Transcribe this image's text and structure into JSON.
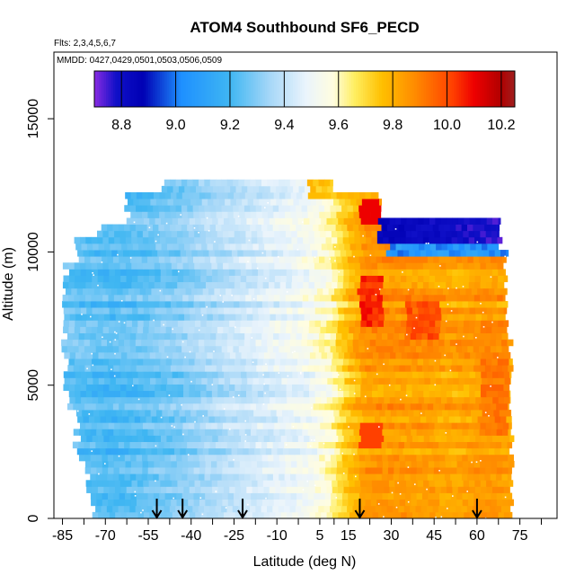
{
  "chart_data": {
    "type": "heatmap",
    "title": "ATOM4 Southbound SF6_PECD",
    "flights_note": "Flts: 2,3,4,5,6,7",
    "dates_note": "MMDD: 0427,0429,0501,0503,0506,0509",
    "xlabel": "Latitude (deg N)",
    "ylabel": "Altitude (m)",
    "xlim": [
      -88,
      88
    ],
    "ylim": [
      0,
      17500
    ],
    "x_tick_labels": [
      "-85",
      "-70",
      "-55",
      "-40",
      "-25",
      "-10",
      "5",
      "15",
      "30",
      "45",
      "60",
      "75"
    ],
    "x_tick_values": [
      -85,
      -70,
      -55,
      -40,
      -25,
      -10,
      5,
      15,
      30,
      45,
      60,
      75
    ],
    "x_minor_ticks": [
      -77.5,
      -62.5,
      -47.5,
      -32.5,
      -17.5,
      -2.5,
      10,
      22.5,
      37.5,
      52.5,
      67.5,
      82.5
    ],
    "y_tick_labels": [
      "0",
      "5000",
      "10000",
      "15000"
    ],
    "y_tick_values": [
      0,
      5000,
      10000,
      15000
    ],
    "colorbar": {
      "range": [
        8.7,
        10.25
      ],
      "tick_labels": [
        "8.8",
        "9.0",
        "9.2",
        "9.4",
        "9.6",
        "9.8",
        "10.0",
        "10.2"
      ],
      "tick_values": [
        8.8,
        9.0,
        9.2,
        9.4,
        9.6,
        9.8,
        10.0,
        10.2
      ],
      "color_stops": [
        [
          8.7,
          "#8a2be2"
        ],
        [
          8.78,
          "#1010c8"
        ],
        [
          8.88,
          "#0000b4"
        ],
        [
          9.02,
          "#1e90ff"
        ],
        [
          9.2,
          "#3fb6f2"
        ],
        [
          9.35,
          "#a8d8f8"
        ],
        [
          9.48,
          "#eaf4fc"
        ],
        [
          9.58,
          "#fffde0"
        ],
        [
          9.66,
          "#ffee60"
        ],
        [
          9.76,
          "#ffc000"
        ],
        [
          9.88,
          "#ff8c00"
        ],
        [
          10.02,
          "#ff4000"
        ],
        [
          10.1,
          "#ee0000"
        ],
        [
          10.2,
          "#b00000"
        ],
        [
          10.25,
          "#a02020"
        ]
      ]
    },
    "arrows_latitude": [
      -52,
      -43,
      -22,
      19,
      60
    ],
    "profile_values": [
      {
        "lat": -82,
        "value": 9.25
      },
      {
        "lat": -70,
        "value": 9.22
      },
      {
        "lat": -60,
        "value": 9.24
      },
      {
        "lat": -45,
        "value": 9.3
      },
      {
        "lat": -30,
        "value": 9.38
      },
      {
        "lat": -15,
        "value": 9.45
      },
      {
        "lat": 0,
        "value": 9.52
      },
      {
        "lat": 8,
        "value": 9.6
      },
      {
        "lat": 14,
        "value": 9.75
      },
      {
        "lat": 20,
        "value": 9.85
      },
      {
        "lat": 35,
        "value": 9.85
      },
      {
        "lat": 50,
        "value": 9.82
      },
      {
        "lat": 65,
        "value": 9.85
      },
      {
        "lat": 75,
        "value": 9.8
      }
    ]
  }
}
